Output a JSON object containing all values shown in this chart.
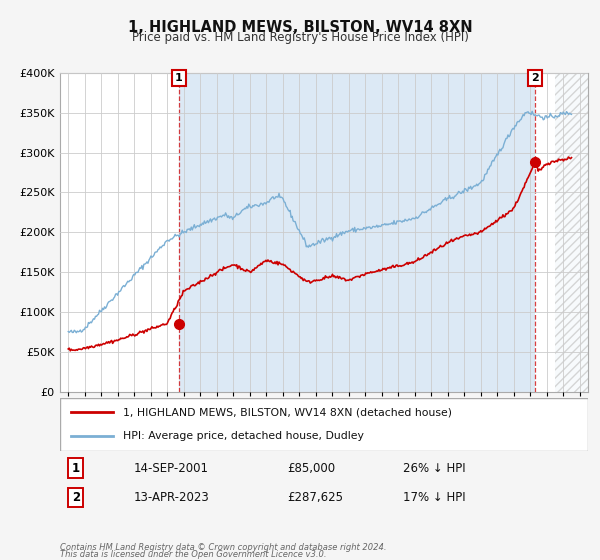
{
  "title": "1, HIGHLAND MEWS, BILSTON, WV14 8XN",
  "subtitle": "Price paid vs. HM Land Registry's House Price Index (HPI)",
  "legend_entry1": "1, HIGHLAND MEWS, BILSTON, WV14 8XN (detached house)",
  "legend_entry2": "HPI: Average price, detached house, Dudley",
  "annotation1_label": "1",
  "annotation1_date": "14-SEP-2001",
  "annotation1_price": "£85,000",
  "annotation1_hpi": "26% ↓ HPI",
  "annotation2_label": "2",
  "annotation2_date": "13-APR-2023",
  "annotation2_price": "£287,625",
  "annotation2_hpi": "17% ↓ HPI",
  "footnote1": "Contains HM Land Registry data © Crown copyright and database right 2024.",
  "footnote2": "This data is licensed under the Open Government Licence v3.0.",
  "red_color": "#cc0000",
  "blue_color": "#7bafd4",
  "blue_fill": "#dce9f5",
  "bg_color": "#f5f5f5",
  "plot_bg_left": "#dce9f5",
  "hatch_color": "#cccccc",
  "grid_color": "#cccccc",
  "ylim": [
    0,
    400000
  ],
  "yticks": [
    0,
    50000,
    100000,
    150000,
    200000,
    250000,
    300000,
    350000,
    400000
  ],
  "xlim_start": 1994.5,
  "xlim_end": 2026.5,
  "sale1_x": 2001.71,
  "sale1_y": 85000,
  "sale2_x": 2023.28,
  "sale2_y": 287625,
  "vline1_x": 2001.71,
  "vline2_x": 2023.28,
  "hatch_start": 2024.5
}
